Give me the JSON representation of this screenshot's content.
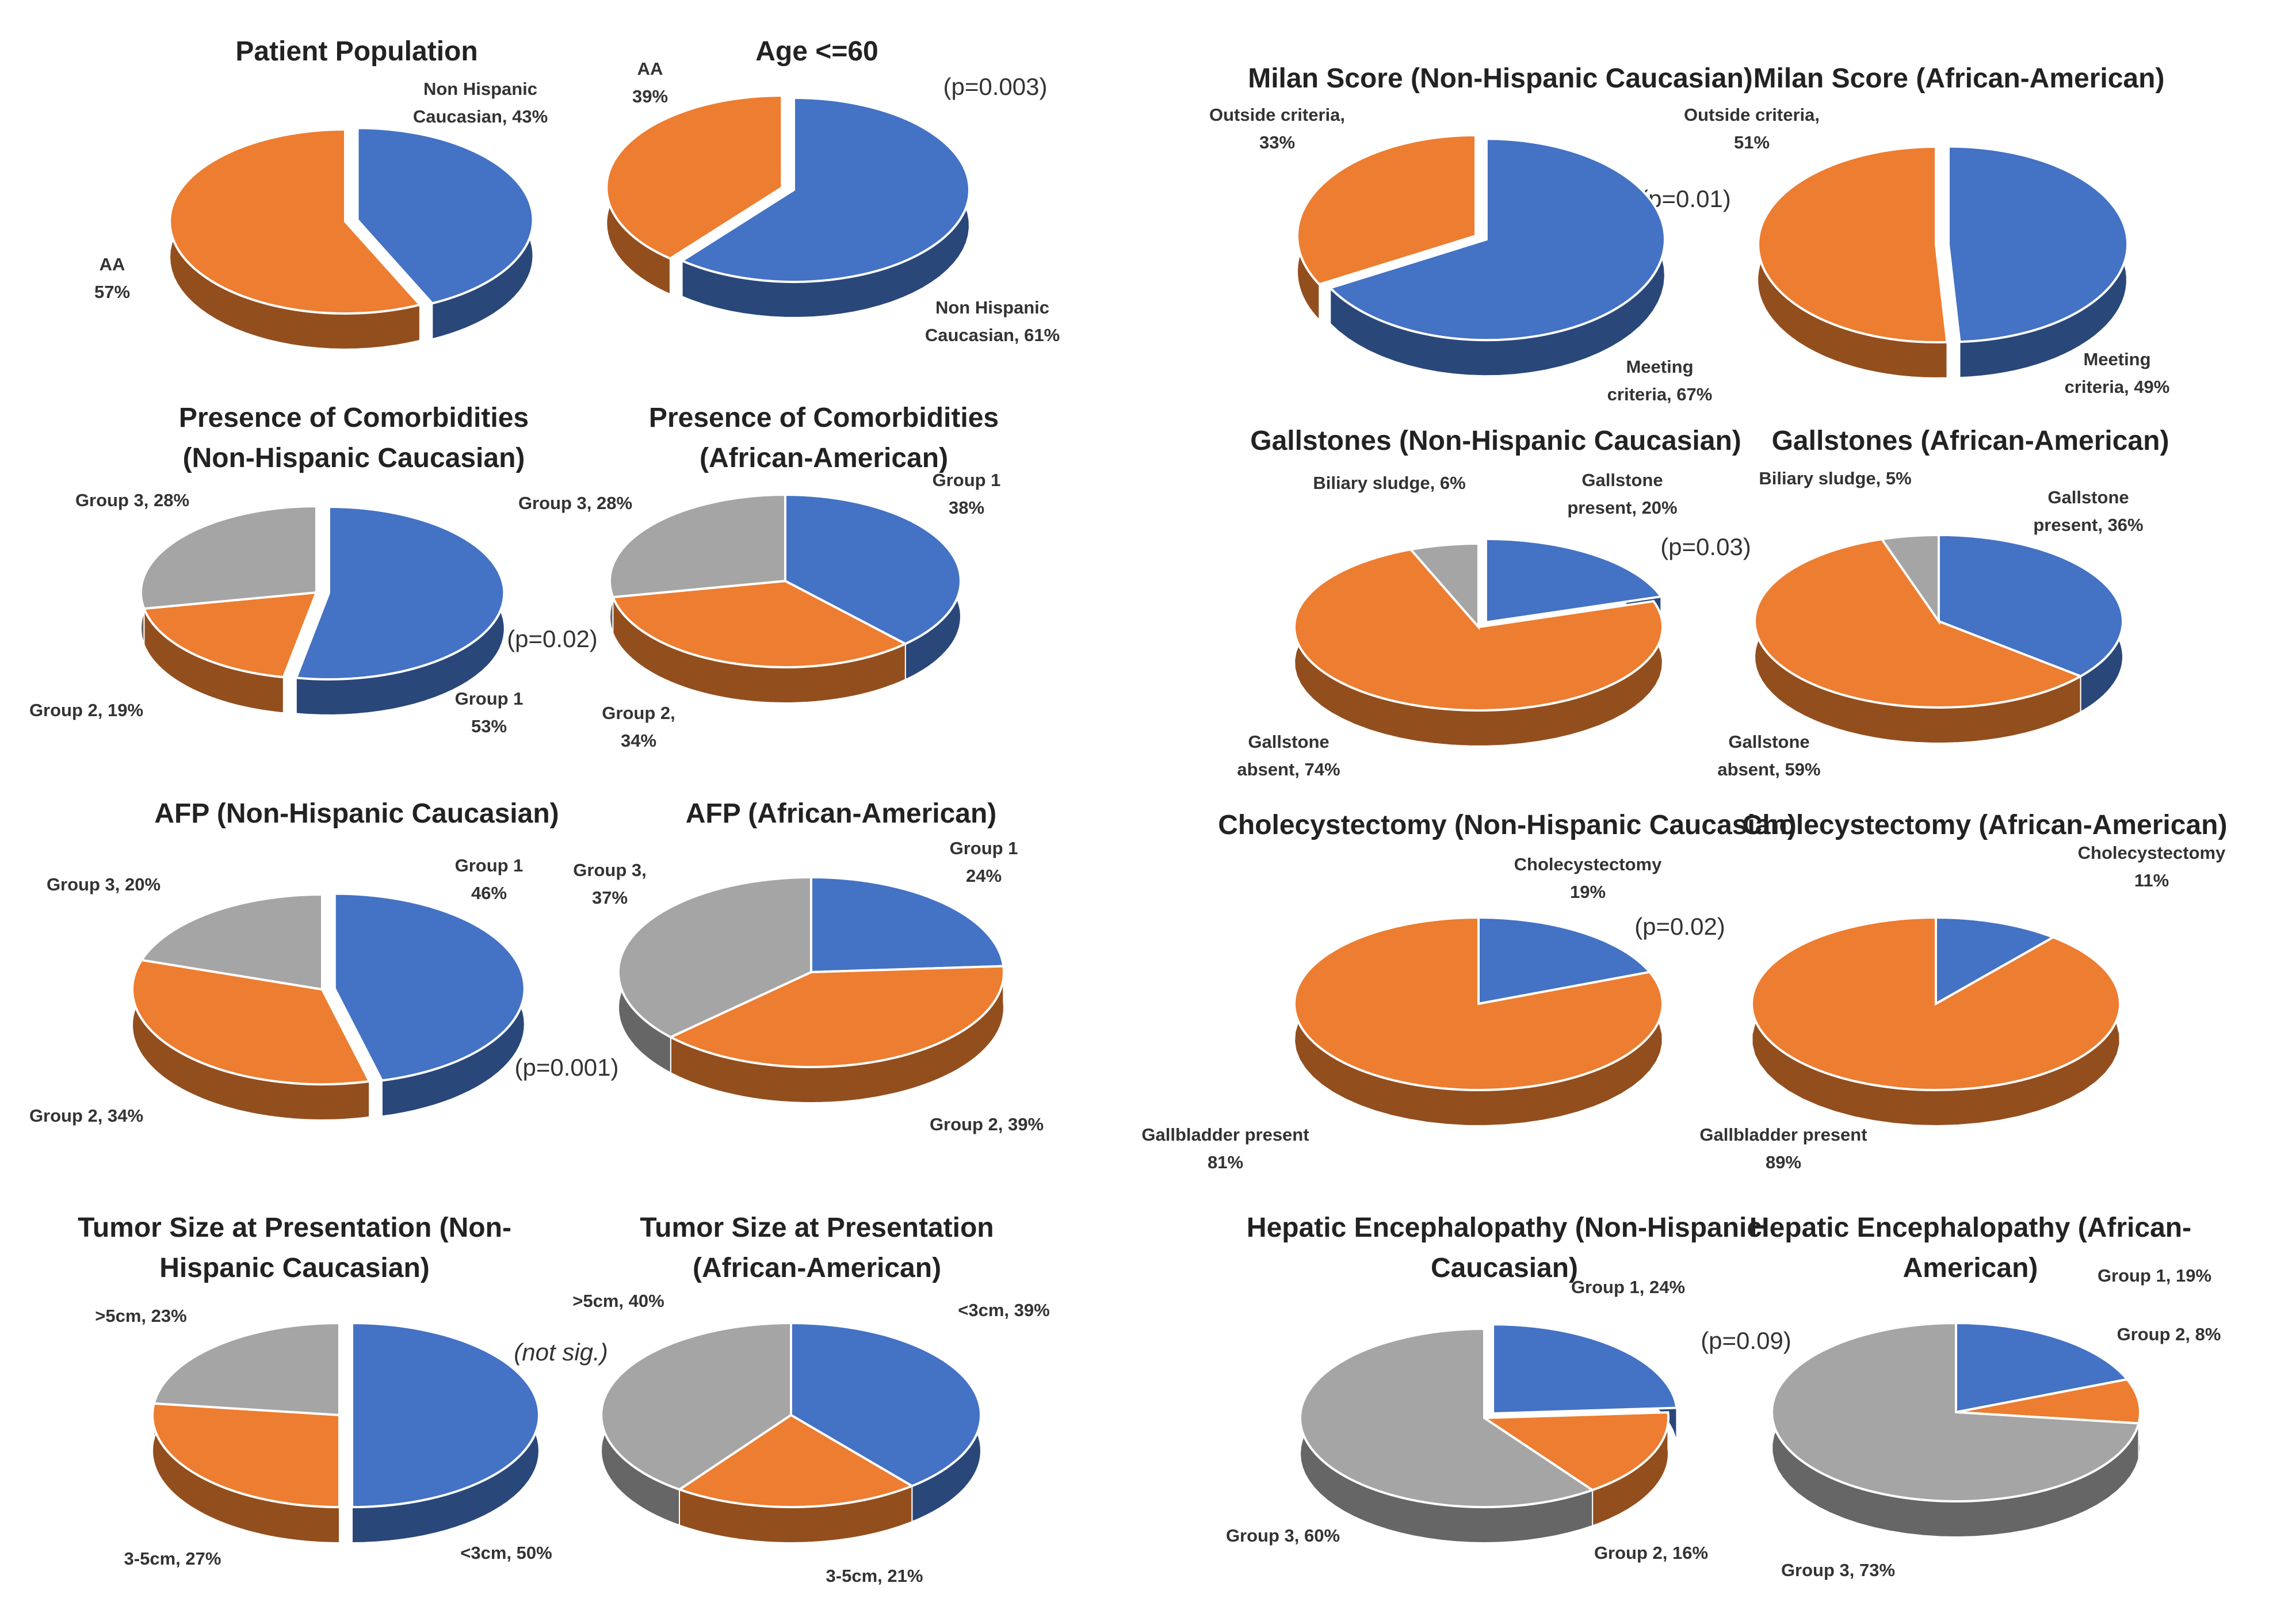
{
  "colors": {
    "blue": "#4472c4",
    "orange": "#ed7d31",
    "gray": "#a5a5a5"
  },
  "chart_data": [
    {
      "type": "pie",
      "title": [
        "Patient Population"
      ],
      "p_value": "",
      "slices": [
        {
          "name": "Non Hispanic Caucasian",
          "value": 43,
          "color": "blue",
          "label": [
            "Non Hispanic",
            "Caucasian, 43%"
          ]
        },
        {
          "name": "AA",
          "value": 57,
          "color": "orange",
          "label": [
            "AA",
            "57%"
          ]
        }
      ]
    },
    {
      "type": "pie",
      "title": [
        "Age <=60"
      ],
      "p_value": "(p=0.003)",
      "slices": [
        {
          "name": "Non Hispanic Caucasian",
          "value": 61,
          "color": "blue",
          "label": [
            "Non Hispanic",
            "Caucasian, 61%"
          ]
        },
        {
          "name": "AA",
          "value": 39,
          "color": "orange",
          "label": [
            "AA",
            "39%"
          ]
        }
      ]
    },
    {
      "type": "pie",
      "title": [
        "Presence of Comorbidities",
        "(Non-Hispanic Caucasian)"
      ],
      "p_value": "(p=0.02)",
      "slices": [
        {
          "name": "Group 1",
          "value": 53,
          "color": "blue",
          "label": [
            "Group 1",
            "53%"
          ]
        },
        {
          "name": "Group 2",
          "value": 19,
          "color": "orange",
          "label": [
            "Group 2, 19%"
          ]
        },
        {
          "name": "Group 3",
          "value": 28,
          "color": "gray",
          "label": [
            "Group 3, 28%"
          ]
        }
      ]
    },
    {
      "type": "pie",
      "title": [
        "Presence of Comorbidities",
        "(African-American)"
      ],
      "p_value": "",
      "slices": [
        {
          "name": "Group 1",
          "value": 38,
          "color": "blue",
          "label": [
            "Group 1",
            "38%"
          ]
        },
        {
          "name": "Group 2",
          "value": 34,
          "color": "orange",
          "label": [
            "Group 2,",
            "34%"
          ]
        },
        {
          "name": "Group 3",
          "value": 28,
          "color": "gray",
          "label": [
            "Group 3, 28%"
          ]
        }
      ]
    },
    {
      "type": "pie",
      "title": [
        "AFP (Non-Hispanic Caucasian)"
      ],
      "p_value": "(p=0.001)",
      "slices": [
        {
          "name": "Group 1",
          "value": 46,
          "color": "blue",
          "label": [
            "Group 1",
            "46%"
          ]
        },
        {
          "name": "Group 2",
          "value": 34,
          "color": "orange",
          "label": [
            "Group 2, 34%"
          ]
        },
        {
          "name": "Group 3",
          "value": 20,
          "color": "gray",
          "label": [
            "Group 3, 20%"
          ]
        }
      ]
    },
    {
      "type": "pie",
      "title": [
        "AFP (African-American)"
      ],
      "p_value": "",
      "slices": [
        {
          "name": "Group 1",
          "value": 24,
          "color": "blue",
          "label": [
            "Group 1",
            "24%"
          ]
        },
        {
          "name": "Group 2",
          "value": 39,
          "color": "orange",
          "label": [
            "Group 2, 39%"
          ]
        },
        {
          "name": "Group 3",
          "value": 37,
          "color": "gray",
          "label": [
            "Group 3,",
            "37%"
          ]
        }
      ]
    },
    {
      "type": "pie",
      "title": [
        "Tumor Size at Presentation (Non-",
        "Hispanic Caucasian)"
      ],
      "p_value": "(not sig.)",
      "slices": [
        {
          "name": "<3cm",
          "value": 50,
          "color": "blue",
          "label": [
            "<3cm, 50%"
          ]
        },
        {
          "name": "3-5cm",
          "value": 27,
          "color": "orange",
          "label": [
            "3-5cm, 27%"
          ]
        },
        {
          "name": ">5cm",
          "value": 23,
          "color": "gray",
          "label": [
            ">5cm, 23%"
          ]
        }
      ]
    },
    {
      "type": "pie",
      "title": [
        "Tumor Size at Presentation",
        "(African-American)"
      ],
      "p_value": "",
      "slices": [
        {
          "name": "<3cm",
          "value": 39,
          "color": "blue",
          "label": [
            "<3cm, 39%"
          ]
        },
        {
          "name": "3-5cm",
          "value": 21,
          "color": "orange",
          "label": [
            "3-5cm, 21%"
          ]
        },
        {
          "name": ">5cm",
          "value": 40,
          "color": "gray",
          "label": [
            ">5cm, 40%"
          ]
        }
      ]
    },
    {
      "type": "pie",
      "title": [
        "Milan Score (Non-Hispanic Caucasian)"
      ],
      "p_value": "(p=0.01)",
      "slices": [
        {
          "name": "Meeting criteria",
          "value": 67,
          "color": "blue",
          "label": [
            "Meeting",
            "criteria, 67%"
          ]
        },
        {
          "name": "Outside criteria",
          "value": 33,
          "color": "orange",
          "label": [
            "Outside criteria,",
            "33%"
          ]
        }
      ]
    },
    {
      "type": "pie",
      "title": [
        "Milan Score (African-American)"
      ],
      "p_value": "",
      "slices": [
        {
          "name": "Meeting criteria",
          "value": 49,
          "color": "blue",
          "label": [
            "Meeting",
            "criteria, 49%"
          ]
        },
        {
          "name": "Outside criteria",
          "value": 51,
          "color": "orange",
          "label": [
            "Outside criteria,",
            "51%"
          ]
        }
      ]
    },
    {
      "type": "pie",
      "title": [
        "Gallstones (Non-Hispanic Caucasian)"
      ],
      "p_value": "(p=0.03)",
      "slices": [
        {
          "name": "Gallstone present",
          "value": 20,
          "color": "blue",
          "label": [
            "Gallstone",
            "present, 20%"
          ]
        },
        {
          "name": "Gallstone absent",
          "value": 74,
          "color": "orange",
          "label": [
            "Gallstone",
            "absent, 74%"
          ]
        },
        {
          "name": "Biliary sludge",
          "value": 6,
          "color": "gray",
          "label": [
            "Biliary sludge, 6%"
          ]
        }
      ]
    },
    {
      "type": "pie",
      "title": [
        "Gallstones (African-American)"
      ],
      "p_value": "",
      "slices": [
        {
          "name": "Gallstone present",
          "value": 36,
          "color": "blue",
          "label": [
            "Gallstone",
            "present, 36%"
          ]
        },
        {
          "name": "Gallstone absent",
          "value": 59,
          "color": "orange",
          "label": [
            "Gallstone",
            "absent, 59%"
          ]
        },
        {
          "name": "Biliary sludge",
          "value": 5,
          "color": "gray",
          "label": [
            "Biliary sludge, 5%"
          ]
        }
      ]
    },
    {
      "type": "pie",
      "title": [
        "Cholecystectomy (Non-Hispanic Caucasian)"
      ],
      "p_value": "(p=0.02)",
      "slices": [
        {
          "name": "Cholecystectomy",
          "value": 19,
          "color": "blue",
          "label": [
            "Cholecystectomy",
            "19%"
          ]
        },
        {
          "name": "Gallbladder present",
          "value": 81,
          "color": "orange",
          "label": [
            "Gallbladder present",
            "81%"
          ]
        }
      ]
    },
    {
      "type": "pie",
      "title": [
        "Cholecystectomy (African-American)"
      ],
      "p_value": "",
      "slices": [
        {
          "name": "Cholecystectomy",
          "value": 11,
          "color": "blue",
          "label": [
            "Cholecystectomy",
            "11%"
          ]
        },
        {
          "name": "Gallbladder present",
          "value": 89,
          "color": "orange",
          "label": [
            "Gallbladder present",
            "89%"
          ]
        }
      ]
    },
    {
      "type": "pie",
      "title": [
        "Hepatic Encephalopathy (Non-Hispanic",
        "Caucasian)"
      ],
      "p_value": "(p=0.09)",
      "slices": [
        {
          "name": "Group 1",
          "value": 24,
          "color": "blue",
          "label": [
            "Group 1, 24%"
          ]
        },
        {
          "name": "Group 2",
          "value": 16,
          "color": "orange",
          "label": [
            "Group 2, 16%"
          ]
        },
        {
          "name": "Group 3",
          "value": 60,
          "color": "gray",
          "label": [
            "Group 3, 60%"
          ]
        }
      ]
    },
    {
      "type": "pie",
      "title": [
        "Hepatic Encephalopathy (African-",
        "American)"
      ],
      "p_value": "",
      "slices": [
        {
          "name": "Group 1",
          "value": 19,
          "color": "blue",
          "label": [
            "Group 1, 19%"
          ]
        },
        {
          "name": "Group 2",
          "value": 8,
          "color": "orange",
          "label": [
            "Group 2, 8%"
          ]
        },
        {
          "name": "Group 3",
          "value": 73,
          "color": "gray",
          "label": [
            "Group 3, 73%"
          ]
        }
      ]
    }
  ]
}
